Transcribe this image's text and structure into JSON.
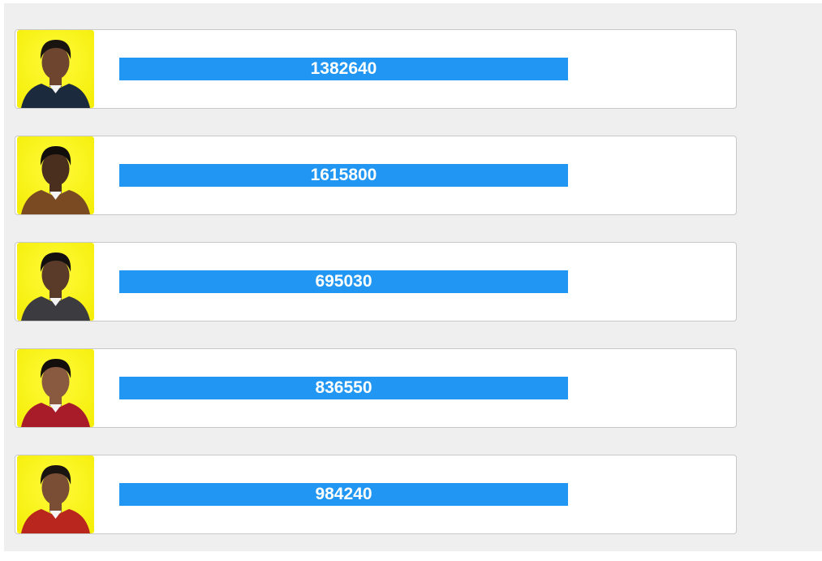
{
  "colors": {
    "panel_bg": "#efefef",
    "bar": "#2196f3",
    "avatar_bg": "#f5ee0a"
  },
  "candidates": [
    {
      "votes": "1382640",
      "bar_fraction": 1.0,
      "avatar": {
        "icon": "person-photo",
        "hair": "#1a1410",
        "skin": "#6e4630",
        "shirt": "#1c2a3e"
      }
    },
    {
      "votes": "1615800",
      "bar_fraction": 1.0,
      "avatar": {
        "icon": "person-photo",
        "hair": "#120e0c",
        "skin": "#4a2e1e",
        "shirt": "#7a4a22"
      }
    },
    {
      "votes": "695030",
      "bar_fraction": 1.0,
      "avatar": {
        "icon": "person-photo",
        "hair": "#151010",
        "skin": "#5a3a28",
        "shirt": "#3c3c40"
      }
    },
    {
      "votes": "836550",
      "bar_fraction": 1.0,
      "avatar": {
        "icon": "person-photo",
        "hair": "#140f0c",
        "skin": "#8a5a40",
        "shirt": "#a81c2a"
      }
    },
    {
      "votes": "984240",
      "bar_fraction": 1.0,
      "avatar": {
        "icon": "person-photo",
        "hair": "#1a1410",
        "skin": "#7a4e34",
        "shirt": "#b8261e"
      }
    }
  ]
}
